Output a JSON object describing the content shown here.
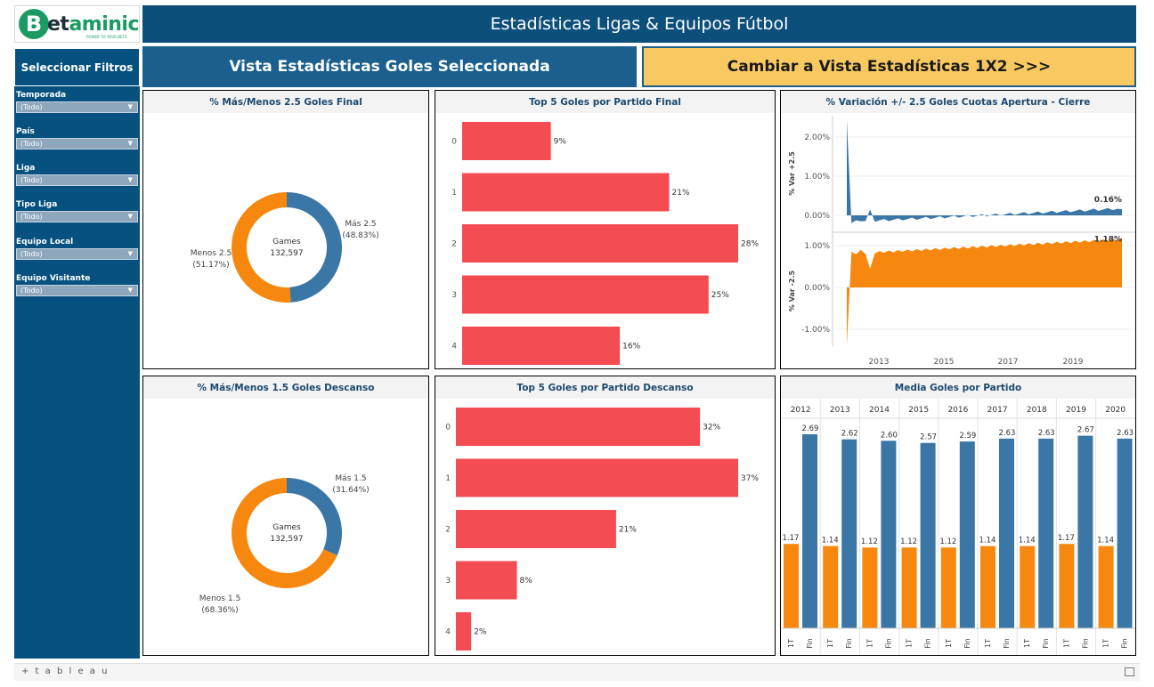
{
  "logo": {
    "letter": "B",
    "word_a": "et",
    "word_b": "aminic",
    "tagline": "POWER TO YOUR BETS"
  },
  "header": {
    "title": "Estadísticas Ligas & Equipos Fútbol"
  },
  "filters": {
    "title": "Seleccionar Filtros",
    "items": [
      {
        "label": "Temporada",
        "value": "(Todo)"
      },
      {
        "label": "País",
        "value": "(Todo)"
      },
      {
        "label": "Liga",
        "value": "(Todo)"
      },
      {
        "label": "Tipo Liga",
        "value": "(Todo)"
      },
      {
        "label": "Equipo Local",
        "value": "(Todo)"
      },
      {
        "label": "Equipo Visitante",
        "value": "(Todo)"
      }
    ]
  },
  "tabs": {
    "goals": "Vista Estadísticas Goles Seleccionada",
    "x12": "Cambiar a Vista Estadísticas 1X2 >>>"
  },
  "colors": {
    "blue": "#3b77a6",
    "orange": "#f7880f",
    "red": "#f34c52"
  },
  "chart_data": [
    {
      "type": "pie",
      "title": "% Más/Menos 2.5  Goles Final",
      "center_label": "Games",
      "center_value": "132,597",
      "slices": [
        {
          "label": "Más 2.5",
          "pct_label": "(48.83%)",
          "value": 48.83
        },
        {
          "label": "Menos 2.5",
          "pct_label": "(51.17%)",
          "value": 51.17
        }
      ]
    },
    {
      "type": "bar",
      "title": "Top 5 Goles por Partido Final",
      "categories": [
        "0",
        "1",
        "2",
        "3",
        "4"
      ],
      "values": [
        9,
        21,
        28,
        25,
        16
      ],
      "labels": [
        "9%",
        "21%",
        "28%",
        "25%",
        "16%"
      ]
    },
    {
      "type": "area",
      "title": "% Variación +/- 2.5 Goles Cuotas Apertura - Cierre",
      "top": {
        "ylabel": "% Var +2.5",
        "ticks": [
          "2.00%",
          "1.00%",
          "0.00%"
        ],
        "last_label": "0.16%"
      },
      "bottom": {
        "ylabel": "% Var -2.5",
        "ticks": [
          "1.00%",
          "0.00%",
          "-1.00%"
        ],
        "last_label": "1.18%"
      },
      "xticks": [
        "2013",
        "2015",
        "2017",
        "2019"
      ]
    },
    {
      "type": "pie",
      "title": "% Más/Menos 1.5 Goles Descanso",
      "center_label": "Games",
      "center_value": "132,597",
      "slices": [
        {
          "label": "Más 1.5",
          "pct_label": "(31.64%)",
          "value": 31.64
        },
        {
          "label": "Menos 1.5",
          "pct_label": "(68.36%)",
          "value": 68.36
        }
      ]
    },
    {
      "type": "bar",
      "title": "Top 5 Goles por Partido Descanso",
      "categories": [
        "0",
        "1",
        "2",
        "3",
        "4"
      ],
      "values": [
        32,
        37,
        21,
        8,
        2
      ],
      "labels": [
        "32%",
        "37%",
        "21%",
        "8%",
        "2%"
      ]
    },
    {
      "type": "bar",
      "title": "Media Goles por Partido",
      "years": [
        "2012",
        "2013",
        "2014",
        "2015",
        "2016",
        "2017",
        "2018",
        "2019",
        "2020"
      ],
      "sub_labels": [
        "1T",
        "Fin"
      ],
      "series": [
        {
          "values": [
            1.17,
            1.14,
            1.12,
            1.12,
            1.12,
            1.14,
            1.14,
            1.17,
            1.14
          ],
          "labels": [
            "1.17",
            "1.14",
            "1.12",
            "1.12",
            "1.12",
            "1.14",
            "1.14",
            "1.17",
            "1.14"
          ]
        },
        {
          "values": [
            2.69,
            2.62,
            2.6,
            2.57,
            2.59,
            2.63,
            2.63,
            2.67,
            2.63
          ],
          "labels": [
            "2.69",
            "2.62",
            "2.60",
            "2.57",
            "2.59",
            "2.63",
            "2.63",
            "2.67",
            "2.63"
          ]
        }
      ]
    }
  ],
  "footer": {
    "brand": "+ t a b l e a u"
  }
}
